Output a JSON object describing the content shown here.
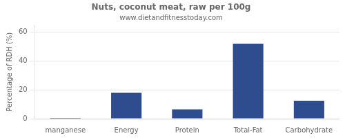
{
  "chart_data": {
    "type": "bar",
    "title": "Nuts, coconut meat, raw per 100g",
    "subtitle": "www.dietandfitnesstoday.com",
    "categories": [
      "manganese",
      "Energy",
      "Protein",
      "Total-Fat",
      "Carbohydrate"
    ],
    "values": [
      0.5,
      18.0,
      6.5,
      52.0,
      12.5
    ],
    "color": "#2e4d8e",
    "ylabel": "Percentage of RDH (%)",
    "ylim": [
      0,
      65
    ],
    "yticks": [
      0,
      20,
      40,
      60
    ],
    "grid": true
  }
}
